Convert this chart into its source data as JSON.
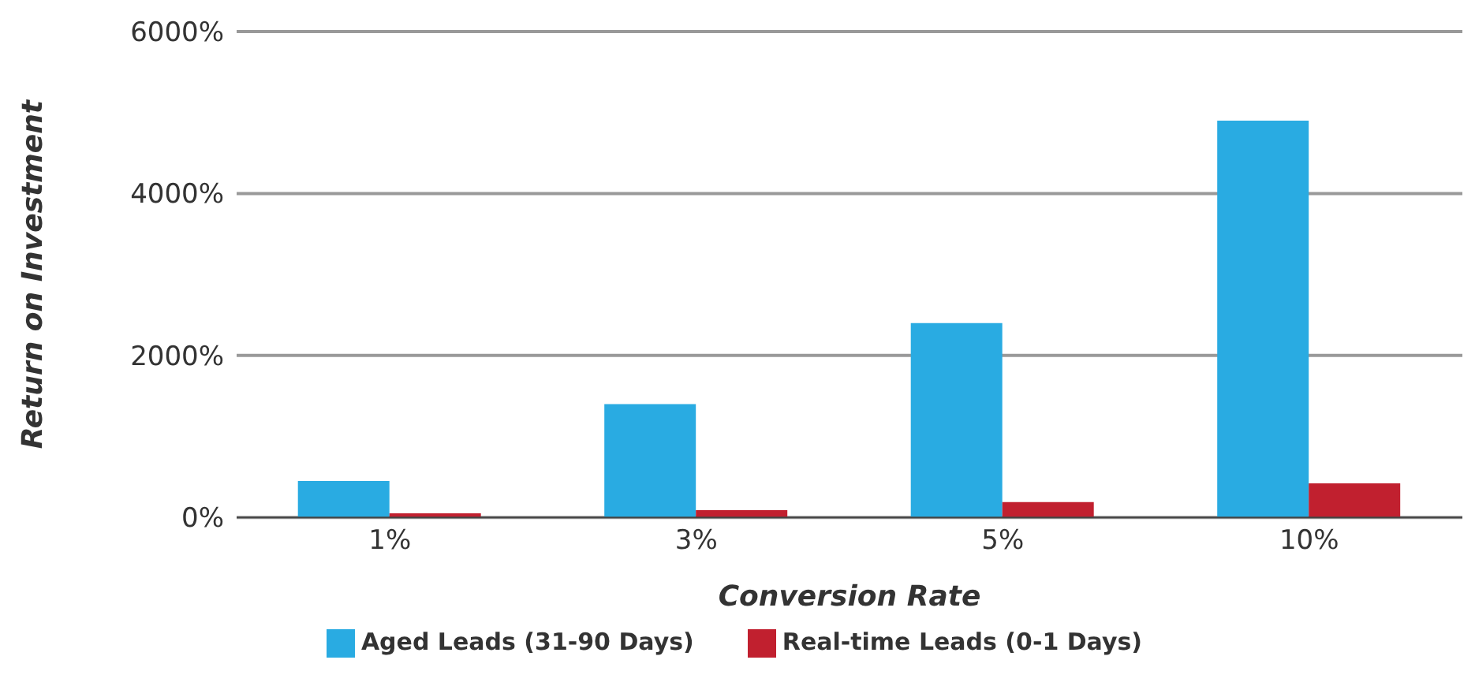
{
  "chart_data": {
    "type": "bar",
    "xlabel": "Conversion Rate",
    "ylabel": "Return on Investment",
    "categories": [
      "1%",
      "3%",
      "5%",
      "10%"
    ],
    "series": [
      {
        "name": "Aged Leads (31-90 Days)",
        "color": "#29abe2",
        "values": [
          450,
          1400,
          2400,
          4900
        ]
      },
      {
        "name": "Real-time Leads (0-1 Days)",
        "color": "#c1202f",
        "values": [
          50,
          90,
          190,
          420
        ]
      }
    ],
    "ylim": [
      0,
      6000
    ],
    "yticks": [
      {
        "value": 0,
        "label": "0%"
      },
      {
        "value": 2000,
        "label": "2000%"
      },
      {
        "value": 4000,
        "label": "4000%"
      },
      {
        "value": 6000,
        "label": "6000%"
      }
    ],
    "grid": "y",
    "legend": "bottom"
  }
}
